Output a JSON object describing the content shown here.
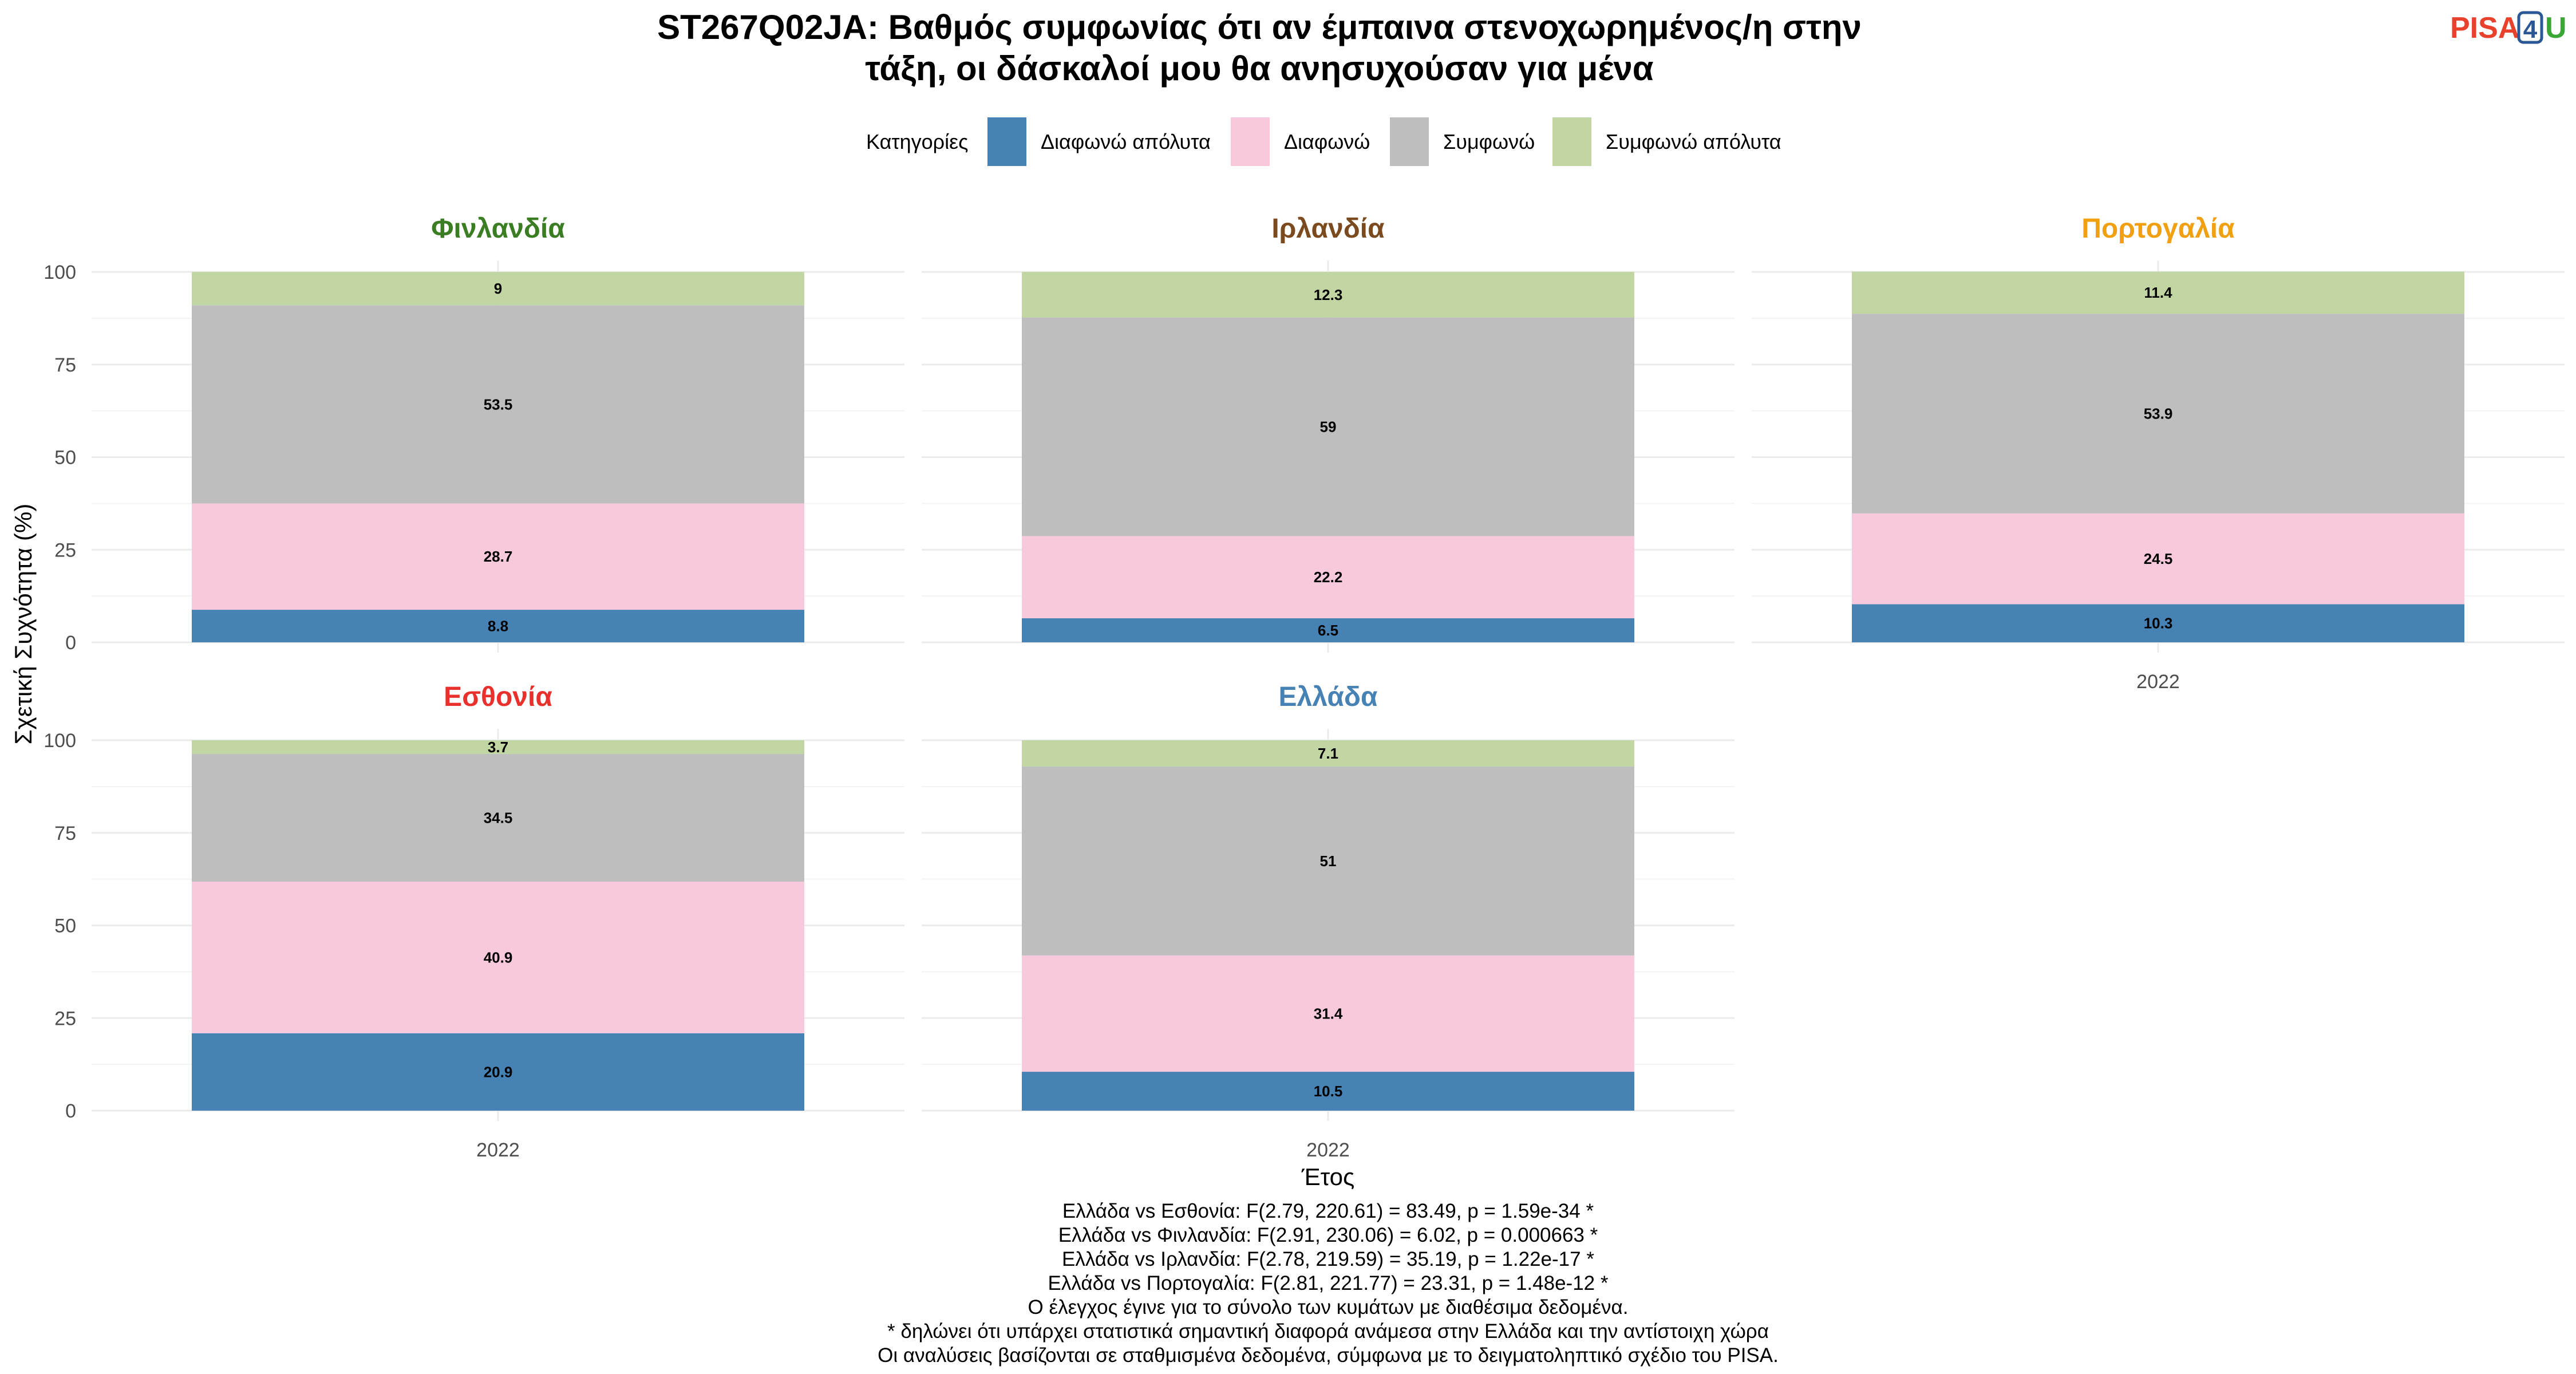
{
  "title_lines": [
    "ST267Q02JA: Βαθμός συμφωνίας ότι αν έμπαινα στενοχωρημένος/η στην",
    "τάξη, οι δάσκαλοί μου θα ανησυχούσαν για μένα"
  ],
  "logo": {
    "part1": "PISA",
    "part2": "4",
    "part3": "U",
    "color1": "#e8412c",
    "color2": "#2b5797",
    "color3": "#3aa635"
  },
  "legend": {
    "title": "Κατηγορίες",
    "items": [
      {
        "label": "Διαφωνώ απόλυτα",
        "color": "#4682b4"
      },
      {
        "label": "Διαφωνώ",
        "color": "#f8c8dc"
      },
      {
        "label": "Συμφωνώ",
        "color": "#bebebe"
      },
      {
        "label": "Συμφωνώ απόλυτα",
        "color": "#c2d6a4"
      }
    ]
  },
  "axes": {
    "ylabel": "Σχετική Συχνότητα (%)",
    "xlabel": "Έτος"
  },
  "chart_data": {
    "type": "bar",
    "stacked": true,
    "facets": [
      {
        "name": "Φινλανδία",
        "color": "#3a7d22",
        "x": "2022",
        "values": [
          8.8,
          28.7,
          53.5,
          9
        ]
      },
      {
        "name": "Ιρλανδία",
        "color": "#7b4a1e",
        "x": "2022",
        "values": [
          6.5,
          22.2,
          59,
          12.3
        ]
      },
      {
        "name": "Πορτογαλία",
        "color": "#f0a010",
        "x": "2022",
        "values": [
          10.3,
          24.5,
          53.9,
          11.4
        ]
      },
      {
        "name": "Εσθονία",
        "color": "#e8302c",
        "x": "2022",
        "values": [
          20.9,
          40.9,
          34.5,
          3.7
        ]
      },
      {
        "name": "Ελλάδα",
        "color": "#4682b4",
        "x": "2022",
        "values": [
          10.5,
          31.4,
          51,
          7.1
        ]
      }
    ],
    "series_names": [
      "Διαφωνώ απόλυτα",
      "Διαφωνώ",
      "Συμφωνώ",
      "Συμφωνώ απόλυτα"
    ],
    "ylim": [
      0,
      100
    ],
    "yticks": [
      0,
      25,
      50,
      75,
      100
    ],
    "x_tick_label": "2022",
    "ylabel": "Σχετική Συχνότητα (%)",
    "xlabel": "Έτος",
    "legend_position": "top",
    "grid": true
  },
  "caption_lines": [
    "Ελλάδα vs Εσθονία: F(2.79, 220.61) = 83.49, p = 1.59e-34 *",
    "Ελλάδα vs Φινλανδία: F(2.91, 230.06) = 6.02, p = 0.000663 *",
    "Ελλάδα vs Ιρλανδία: F(2.78, 219.59) = 35.19, p = 1.22e-17 *",
    "Ελλάδα vs Πορτογαλία: F(2.81, 221.77) = 23.31, p = 1.48e-12 *",
    "Ο έλεγχος έγινε για το σύνολο των κυμάτων με διαθέσιμα δεδομένα.",
    "* δηλώνει ότι υπάρχει στατιστικά σημαντική διαφορά ανάμεσα στην Ελλάδα και την αντίστοιχη χώρα",
    "Οι αναλύσεις βασίζονται σε σταθμισμένα δεδομένα, σύμφωνα με το δειγματοληπτικό σχέδιο του PISA."
  ]
}
